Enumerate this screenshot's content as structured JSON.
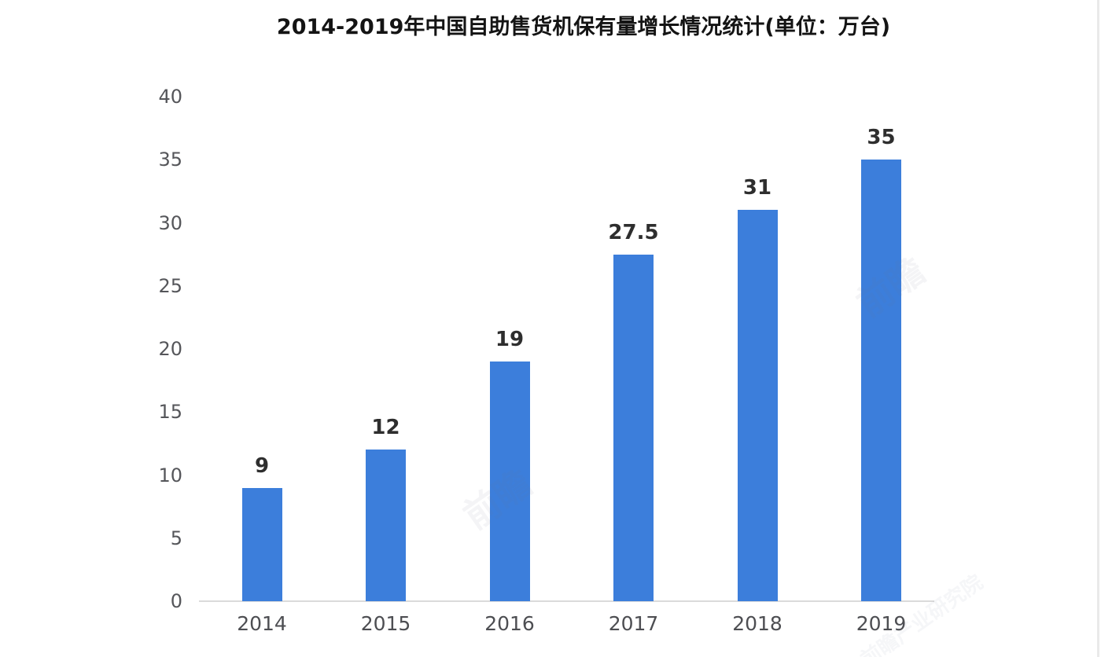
{
  "title": "2014-2019年中国自助售货机保有量增长情况统计(单位：万台)",
  "chart_data": {
    "type": "bar",
    "title": "2014-2019年中国自助售货机保有量增长情况统计(单位：万台)",
    "categories": [
      "2014",
      "2015",
      "2016",
      "2017",
      "2018",
      "2019"
    ],
    "values": [
      9,
      12,
      19,
      27.5,
      31,
      35
    ],
    "value_labels": [
      "9",
      "12",
      "19",
      "27.5",
      "31",
      "35"
    ],
    "xlabel": "",
    "ylabel": "",
    "ylim": [
      0,
      40
    ],
    "yticks": [
      0,
      5,
      10,
      15,
      20,
      25,
      30,
      35,
      40
    ],
    "grid": false,
    "legend": "none",
    "bar_color": "#3c7edb",
    "axis_line_color": "#dadada",
    "tick_label_color": "#55565a",
    "value_label_color": "#2e2e2e",
    "title_color": "#141414"
  },
  "watermarks": [
    {
      "text": "前瞻"
    },
    {
      "text": "前瞻"
    },
    {
      "text": "前瞻产业研究院"
    }
  ]
}
